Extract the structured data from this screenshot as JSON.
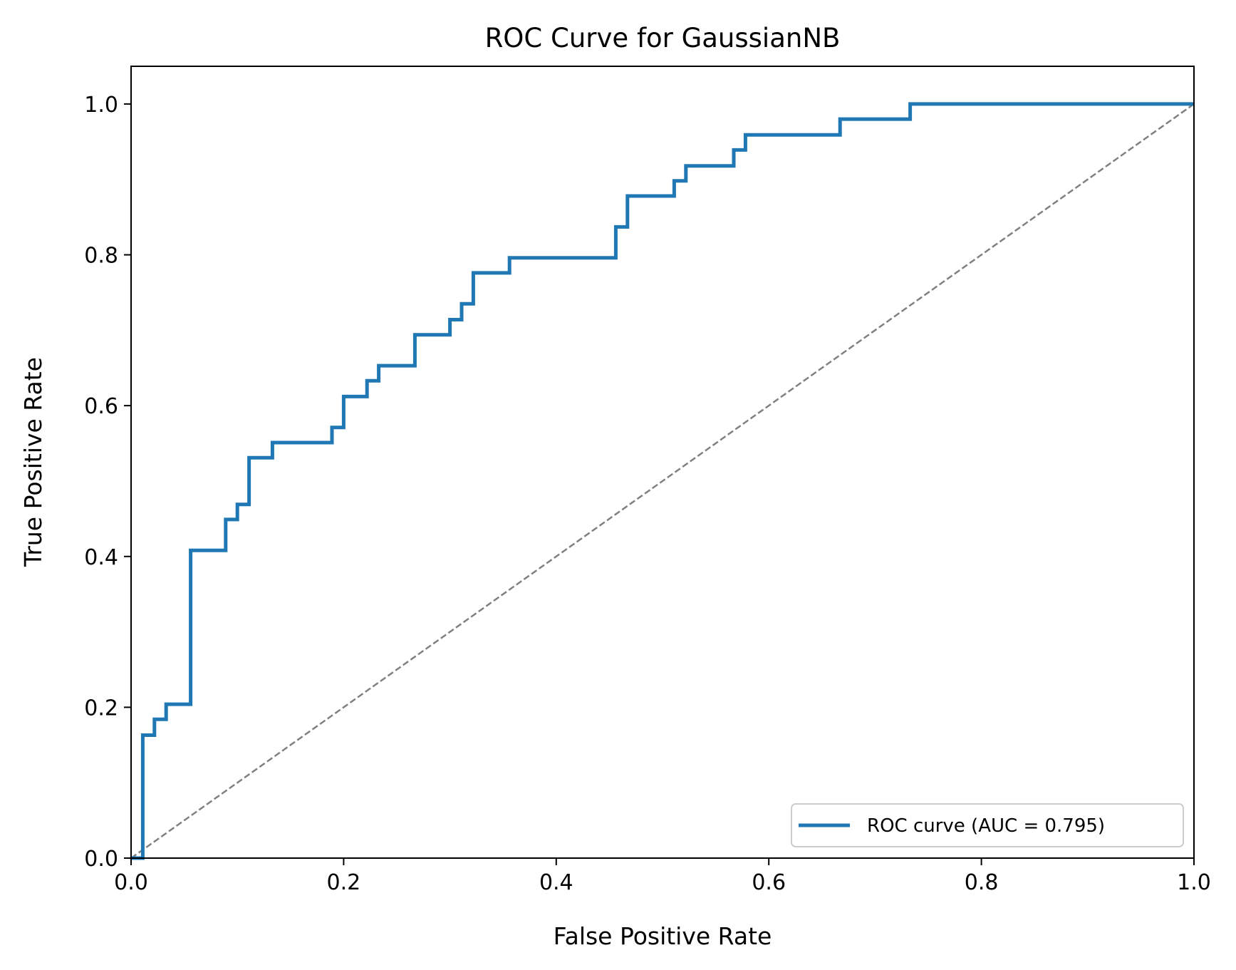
{
  "chart_data": {
    "type": "line",
    "title": "ROC Curve for GaussianNB",
    "xlabel": "False Positive Rate",
    "ylabel": "True Positive Rate",
    "xlim": [
      0.0,
      1.0
    ],
    "ylim": [
      0.0,
      1.05
    ],
    "x_ticks": [
      "0.0",
      "0.2",
      "0.4",
      "0.6",
      "0.8",
      "1.0"
    ],
    "y_ticks": [
      "0.0",
      "0.2",
      "0.4",
      "0.6",
      "0.8",
      "1.0"
    ],
    "grid": false,
    "legend_position": "bottom-right",
    "series": [
      {
        "name": "ROC curve (AUC = 0.795)",
        "style": "step",
        "color": "#1f77b4",
        "points": [
          [
            0.0,
            0.0
          ],
          [
            0.011,
            0.0
          ],
          [
            0.011,
            0.163
          ],
          [
            0.022,
            0.163
          ],
          [
            0.022,
            0.184
          ],
          [
            0.033,
            0.184
          ],
          [
            0.033,
            0.204
          ],
          [
            0.056,
            0.204
          ],
          [
            0.056,
            0.408
          ],
          [
            0.089,
            0.408
          ],
          [
            0.089,
            0.449
          ],
          [
            0.1,
            0.449
          ],
          [
            0.1,
            0.469
          ],
          [
            0.111,
            0.469
          ],
          [
            0.111,
            0.531
          ],
          [
            0.133,
            0.531
          ],
          [
            0.133,
            0.551
          ],
          [
            0.189,
            0.551
          ],
          [
            0.189,
            0.571
          ],
          [
            0.2,
            0.571
          ],
          [
            0.2,
            0.612
          ],
          [
            0.222,
            0.612
          ],
          [
            0.222,
            0.633
          ],
          [
            0.233,
            0.633
          ],
          [
            0.233,
            0.653
          ],
          [
            0.267,
            0.653
          ],
          [
            0.267,
            0.694
          ],
          [
            0.3,
            0.694
          ],
          [
            0.3,
            0.714
          ],
          [
            0.311,
            0.714
          ],
          [
            0.311,
            0.735
          ],
          [
            0.322,
            0.735
          ],
          [
            0.322,
            0.776
          ],
          [
            0.356,
            0.776
          ],
          [
            0.356,
            0.796
          ],
          [
            0.456,
            0.796
          ],
          [
            0.456,
            0.837
          ],
          [
            0.467,
            0.837
          ],
          [
            0.467,
            0.878
          ],
          [
            0.511,
            0.878
          ],
          [
            0.511,
            0.898
          ],
          [
            0.522,
            0.898
          ],
          [
            0.522,
            0.918
          ],
          [
            0.567,
            0.918
          ],
          [
            0.567,
            0.939
          ],
          [
            0.578,
            0.939
          ],
          [
            0.578,
            0.959
          ],
          [
            0.667,
            0.959
          ],
          [
            0.667,
            0.98
          ],
          [
            0.733,
            0.98
          ],
          [
            0.733,
            1.0
          ],
          [
            1.0,
            1.0
          ]
        ]
      },
      {
        "name": "",
        "style": "dashed",
        "color": "#808080",
        "points": [
          [
            0.0,
            0.0
          ],
          [
            1.0,
            1.0
          ]
        ]
      }
    ]
  }
}
